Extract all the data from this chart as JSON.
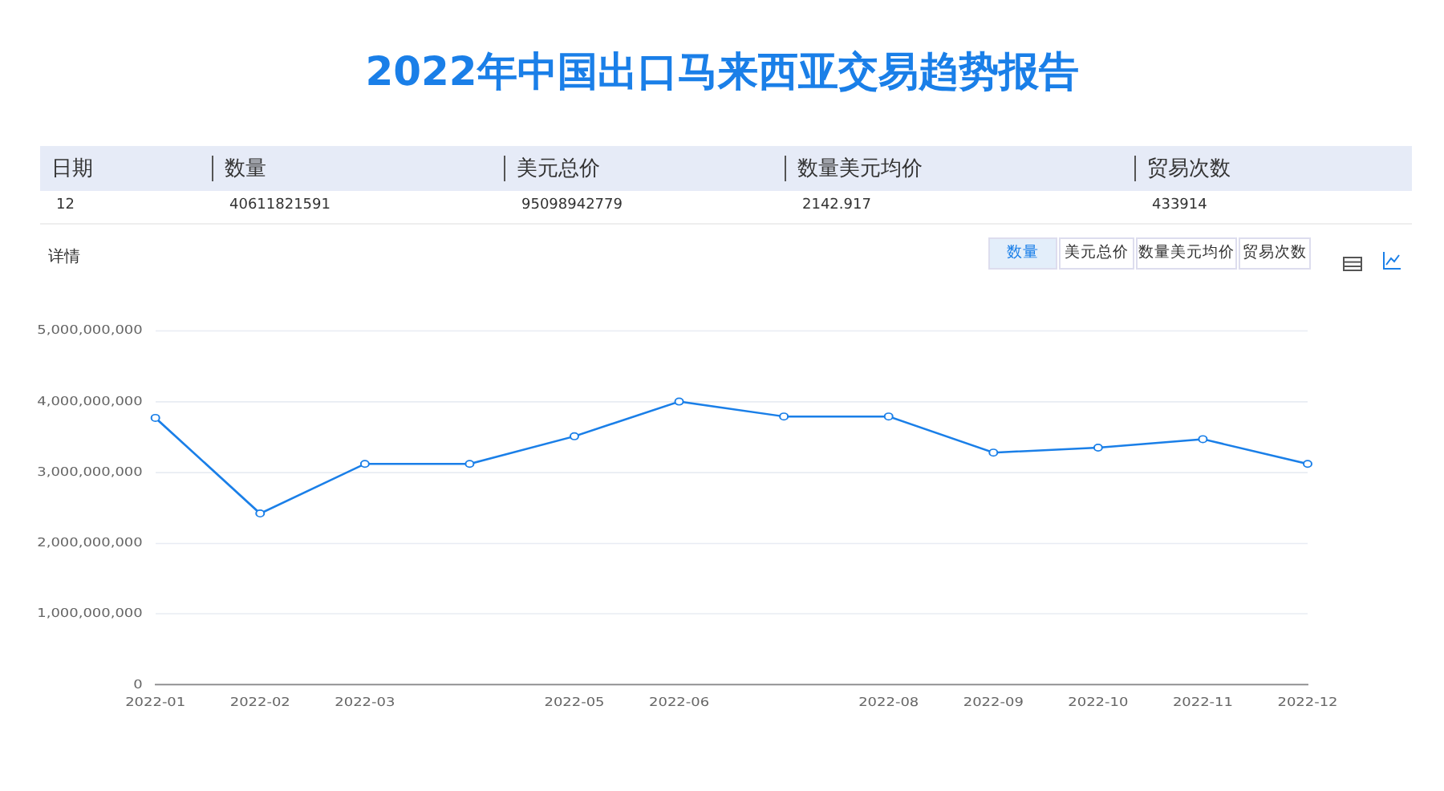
{
  "chart_data": [
    {
      "type": "other",
      "title": "2022年中国出口马来西亚交易趋势报告",
      "annotations": [
        "日期",
        "数量",
        "美元总价",
        "数量美元均价",
        "贸易次数",
        "12",
        "40611821591",
        "95098942779",
        "2142.917",
        "433914"
      ]
    },
    {
      "type": "line",
      "annotations": [
        "详情",
        "数量",
        "美元总价",
        "数量美元均价",
        "贸易次数"
      ],
      "categories": [
        "2022-01",
        "2022-02",
        "2022-03",
        null,
        "2022-05",
        "2022-06",
        null,
        "2022-08",
        "2022-09",
        "2022-10",
        "2022-11",
        "2022-12"
      ],
      "series": [
        {
          "color": "#1a7fe8",
          "values": [
            3770000000,
            2420000000,
            3120000000,
            3120000000,
            3510000000,
            4000000000,
            3790000000,
            3790000000,
            3280000000,
            3350000000,
            3470000000,
            3120000000
          ]
        }
      ],
      "ylim": [
        0,
        5000000000
      ],
      "yticks": [
        0,
        {
          "value": 1000000000,
          "label": "1,000,000,000"
        },
        {
          "value": 2000000000,
          "label": "2,000,000,000"
        },
        {
          "value": 3000000000,
          "label": "3,000,000,000"
        },
        {
          "value": 4000000000,
          "label": "4,000,000,000"
        },
        {
          "value": 5000000000,
          "label": "5,000,000,000"
        }
      ],
      "grid": "y",
      "legend": false,
      "marker": "circle",
      "line_style": "solid"
    }
  ]
}
